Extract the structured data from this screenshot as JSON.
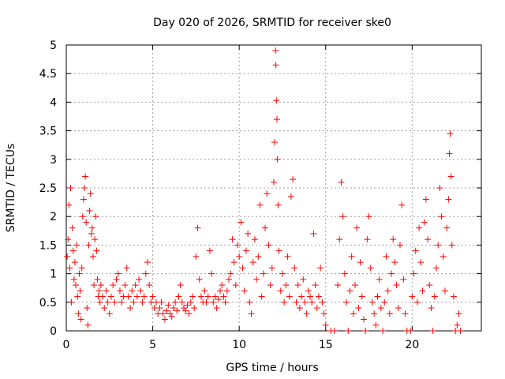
{
  "chart_data": {
    "type": "scatter",
    "title": "Day 020 of 2026, SRMTID for receiver ske0",
    "xlabel": "GPS time / hours",
    "ylabel": "SRMTID / TECUs",
    "xlim": [
      0,
      24
    ],
    "ylim": [
      0,
      5
    ],
    "xticks": [
      0,
      5,
      10,
      15,
      20
    ],
    "xtick_labels": [
      "0",
      "5",
      "10",
      "15",
      "20"
    ],
    "yticks": [
      0,
      0.5,
      1,
      1.5,
      2,
      2.5,
      3,
      3.5,
      4,
      4.5,
      5
    ],
    "ytick_labels": [
      "0",
      "0.5",
      "1",
      "1.5",
      "2",
      "2.5",
      "3",
      "3.5",
      "4",
      "4.5",
      "5"
    ],
    "grid": true,
    "marker": "plus",
    "series": [
      {
        "name": "SRMTID",
        "color": "#ff0000",
        "points": [
          [
            0.05,
            1.3
          ],
          [
            0.1,
            1.6
          ],
          [
            0.15,
            2.2
          ],
          [
            0.2,
            1.1
          ],
          [
            0.25,
            2.5
          ],
          [
            0.3,
            0.5
          ],
          [
            0.35,
            1.8
          ],
          [
            0.4,
            1.4
          ],
          [
            0.45,
            0.9
          ],
          [
            0.5,
            1.2
          ],
          [
            0.55,
            0.8
          ],
          [
            0.6,
            1.5
          ],
          [
            0.65,
            0.6
          ],
          [
            0.7,
            0.3
          ],
          [
            0.75,
            1.0
          ],
          [
            0.8,
            0.7
          ],
          [
            0.85,
            0.2
          ],
          [
            0.9,
            1.1
          ],
          [
            0.95,
            2.0
          ],
          [
            1.0,
            2.3
          ],
          [
            1.05,
            2.5
          ],
          [
            1.1,
            2.7
          ],
          [
            1.15,
            1.9
          ],
          [
            1.2,
            0.4
          ],
          [
            1.25,
            0.1
          ],
          [
            1.3,
            1.5
          ],
          [
            1.35,
            2.1
          ],
          [
            1.4,
            2.4
          ],
          [
            1.45,
            1.7
          ],
          [
            1.5,
            1.8
          ],
          [
            1.55,
            1.3
          ],
          [
            1.6,
            0.8
          ],
          [
            1.65,
            1.6
          ],
          [
            1.7,
            2.0
          ],
          [
            1.75,
            1.4
          ],
          [
            1.8,
            0.9
          ],
          [
            1.85,
            0.6
          ],
          [
            1.9,
            0.7
          ],
          [
            1.95,
            0.5
          ],
          [
            2.0,
            0.8
          ],
          [
            2.1,
            0.6
          ],
          [
            2.2,
            0.4
          ],
          [
            2.3,
            0.7
          ],
          [
            2.4,
            0.5
          ],
          [
            2.5,
            0.3
          ],
          [
            2.6,
            0.6
          ],
          [
            2.7,
            0.8
          ],
          [
            2.8,
            0.5
          ],
          [
            2.9,
            0.9
          ],
          [
            3.0,
            1.0
          ],
          [
            3.1,
            0.7
          ],
          [
            3.2,
            0.5
          ],
          [
            3.3,
            0.6
          ],
          [
            3.4,
            0.8
          ],
          [
            3.5,
            1.1
          ],
          [
            3.6,
            0.6
          ],
          [
            3.7,
            0.4
          ],
          [
            3.8,
            0.7
          ],
          [
            3.9,
            0.5
          ],
          [
            4.0,
            0.8
          ],
          [
            4.1,
            0.6
          ],
          [
            4.2,
            0.9
          ],
          [
            4.3,
            0.7
          ],
          [
            4.4,
            0.5
          ],
          [
            4.5,
            0.6
          ],
          [
            4.6,
            1.0
          ],
          [
            4.7,
            1.2
          ],
          [
            4.8,
            0.8
          ],
          [
            4.9,
            0.5
          ],
          [
            5.0,
            0.6
          ],
          [
            5.1,
            0.4
          ],
          [
            5.2,
            0.5
          ],
          [
            5.3,
            0.3
          ],
          [
            5.4,
            0.4
          ],
          [
            5.5,
            0.5
          ],
          [
            5.6,
            0.3
          ],
          [
            5.7,
            0.2
          ],
          [
            5.8,
            0.35
          ],
          [
            5.9,
            0.45
          ],
          [
            6.0,
            0.3
          ],
          [
            6.1,
            0.25
          ],
          [
            6.2,
            0.4
          ],
          [
            6.3,
            0.5
          ],
          [
            6.4,
            0.35
          ],
          [
            6.5,
            0.6
          ],
          [
            6.6,
            0.8
          ],
          [
            6.7,
            0.5
          ],
          [
            6.8,
            0.4
          ],
          [
            6.9,
            0.35
          ],
          [
            7.0,
            0.45
          ],
          [
            7.1,
            0.3
          ],
          [
            7.2,
            0.5
          ],
          [
            7.3,
            0.6
          ],
          [
            7.4,
            0.4
          ],
          [
            7.5,
            1.3
          ],
          [
            7.6,
            1.8
          ],
          [
            7.7,
            0.9
          ],
          [
            7.8,
            0.6
          ],
          [
            7.9,
            0.5
          ],
          [
            8.0,
            0.7
          ],
          [
            8.1,
            0.5
          ],
          [
            8.2,
            0.6
          ],
          [
            8.3,
            1.4
          ],
          [
            8.4,
            1.0
          ],
          [
            8.5,
            0.5
          ],
          [
            8.6,
            0.6
          ],
          [
            8.7,
            0.4
          ],
          [
            8.8,
            0.55
          ],
          [
            8.9,
            0.7
          ],
          [
            9.0,
            0.8
          ],
          [
            9.1,
            0.6
          ],
          [
            9.2,
            0.5
          ],
          [
            9.3,
            0.7
          ],
          [
            9.4,
            0.9
          ],
          [
            9.5,
            1.0
          ],
          [
            9.6,
            1.6
          ],
          [
            9.7,
            1.2
          ],
          [
            9.8,
            0.8
          ],
          [
            9.9,
            1.5
          ],
          [
            10.0,
            1.3
          ],
          [
            10.1,
            1.9
          ],
          [
            10.2,
            1.1
          ],
          [
            10.3,
            0.7
          ],
          [
            10.4,
            1.4
          ],
          [
            10.5,
            1.7
          ],
          [
            10.6,
            0.5
          ],
          [
            10.7,
            0.3
          ],
          [
            10.8,
            1.2
          ],
          [
            10.9,
            1.6
          ],
          [
            11.0,
            0.9
          ],
          [
            11.1,
            1.3
          ],
          [
            11.2,
            2.2
          ],
          [
            11.3,
            0.6
          ],
          [
            11.4,
            1.0
          ],
          [
            11.5,
            1.8
          ],
          [
            11.6,
            2.4
          ],
          [
            11.7,
            1.5
          ],
          [
            11.8,
            0.8
          ],
          [
            11.9,
            1.1
          ],
          [
            12.0,
            2.6
          ],
          [
            12.05,
            3.3
          ],
          [
            12.1,
            4.9
          ],
          [
            12.12,
            4.65
          ],
          [
            12.15,
            4.03
          ],
          [
            12.18,
            3.7
          ],
          [
            12.2,
            3.0
          ],
          [
            12.25,
            2.2
          ],
          [
            12.3,
            1.4
          ],
          [
            12.4,
            0.7
          ],
          [
            12.5,
            1.0
          ],
          [
            12.6,
            0.5
          ],
          [
            12.7,
            0.8
          ],
          [
            12.8,
            1.3
          ],
          [
            12.9,
            0.6
          ],
          [
            13.0,
            2.35
          ],
          [
            13.1,
            2.65
          ],
          [
            13.2,
            1.1
          ],
          [
            13.3,
            0.5
          ],
          [
            13.4,
            0.8
          ],
          [
            13.5,
            0.4
          ],
          [
            13.6,
            0.6
          ],
          [
            13.7,
            0.9
          ],
          [
            13.8,
            0.5
          ],
          [
            13.9,
            0.3
          ],
          [
            14.0,
            0.7
          ],
          [
            14.1,
            0.6
          ],
          [
            14.2,
            0.5
          ],
          [
            14.3,
            1.7
          ],
          [
            14.4,
            0.8
          ],
          [
            14.5,
            0.4
          ],
          [
            14.6,
            0.6
          ],
          [
            14.7,
            1.1
          ],
          [
            14.8,
            0.5
          ],
          [
            14.9,
            0.3
          ],
          [
            15.0,
            0.1
          ],
          [
            15.3,
            0.0
          ],
          [
            15.5,
            0.0
          ],
          [
            15.7,
            0.8
          ],
          [
            15.8,
            1.6
          ],
          [
            15.9,
            2.6
          ],
          [
            16.0,
            2.0
          ],
          [
            16.1,
            1.0
          ],
          [
            16.2,
            0.5
          ],
          [
            16.3,
            0.0
          ],
          [
            16.4,
            0.7
          ],
          [
            16.5,
            1.3
          ],
          [
            16.6,
            0.3
          ],
          [
            16.7,
            0.8
          ],
          [
            16.8,
            1.8
          ],
          [
            16.9,
            0.4
          ],
          [
            17.0,
            1.2
          ],
          [
            17.1,
            0.6
          ],
          [
            17.2,
            0.2
          ],
          [
            17.3,
            0.0
          ],
          [
            17.4,
            1.6
          ],
          [
            17.5,
            2.0
          ],
          [
            17.6,
            1.1
          ],
          [
            17.7,
            0.5
          ],
          [
            17.8,
            0.3
          ],
          [
            17.9,
            0.1
          ],
          [
            18.0,
            0.6
          ],
          [
            18.1,
            0.9
          ],
          [
            18.2,
            0.4
          ],
          [
            18.3,
            0.0
          ],
          [
            18.4,
            0.5
          ],
          [
            18.5,
            1.3
          ],
          [
            18.6,
            0.7
          ],
          [
            18.7,
            0.3
          ],
          [
            18.8,
            1.0
          ],
          [
            18.9,
            1.6
          ],
          [
            19.0,
            1.2
          ],
          [
            19.1,
            0.8
          ],
          [
            19.2,
            0.4
          ],
          [
            19.3,
            1.5
          ],
          [
            19.4,
            2.2
          ],
          [
            19.5,
            0.9
          ],
          [
            19.6,
            0.3
          ],
          [
            19.7,
            0.0
          ],
          [
            19.9,
            0.0
          ],
          [
            20.0,
            0.6
          ],
          [
            20.1,
            1.0
          ],
          [
            20.2,
            1.4
          ],
          [
            20.3,
            0.5
          ],
          [
            20.4,
            1.8
          ],
          [
            20.5,
            1.2
          ],
          [
            20.6,
            0.7
          ],
          [
            20.7,
            1.9
          ],
          [
            20.8,
            2.3
          ],
          [
            20.9,
            1.6
          ],
          [
            21.0,
            0.8
          ],
          [
            21.1,
            0.4
          ],
          [
            21.2,
            0.0
          ],
          [
            21.3,
            0.6
          ],
          [
            21.4,
            1.1
          ],
          [
            21.5,
            1.5
          ],
          [
            21.6,
            2.5
          ],
          [
            21.7,
            2.0
          ],
          [
            21.8,
            1.3
          ],
          [
            21.9,
            0.7
          ],
          [
            22.0,
            1.8
          ],
          [
            22.1,
            2.3
          ],
          [
            22.15,
            3.1
          ],
          [
            22.2,
            3.45
          ],
          [
            22.25,
            2.7
          ],
          [
            22.3,
            1.5
          ],
          [
            22.4,
            0.6
          ],
          [
            22.5,
            0.0
          ],
          [
            22.6,
            0.1
          ],
          [
            22.7,
            0.3
          ],
          [
            22.8,
            0.0
          ]
        ]
      }
    ]
  }
}
